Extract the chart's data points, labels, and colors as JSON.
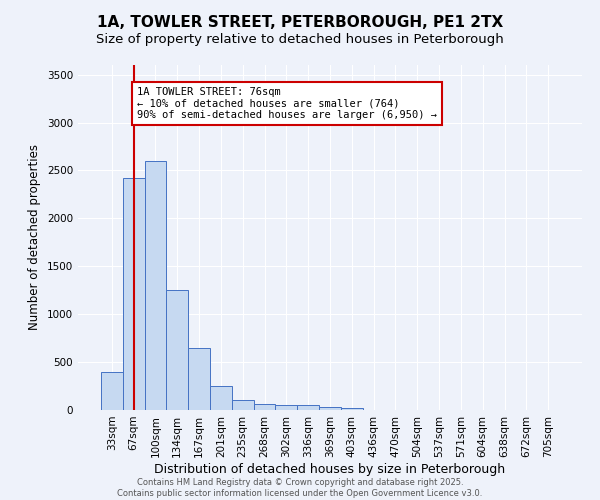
{
  "title_line1": "1A, TOWLER STREET, PETERBOROUGH, PE1 2TX",
  "title_line2": "Size of property relative to detached houses in Peterborough",
  "xlabel": "Distribution of detached houses by size in Peterborough",
  "ylabel": "Number of detached properties",
  "bin_labels": [
    "33sqm",
    "67sqm",
    "100sqm",
    "134sqm",
    "167sqm",
    "201sqm",
    "235sqm",
    "268sqm",
    "302sqm",
    "336sqm",
    "369sqm",
    "403sqm",
    "436sqm",
    "470sqm",
    "504sqm",
    "537sqm",
    "571sqm",
    "604sqm",
    "638sqm",
    "672sqm",
    "705sqm"
  ],
  "bar_heights": [
    400,
    2420,
    2600,
    1250,
    650,
    255,
    105,
    60,
    55,
    50,
    30,
    25,
    0,
    0,
    0,
    0,
    0,
    0,
    0,
    0,
    0
  ],
  "bar_color": "#c6d9f1",
  "bar_edge_color": "#4472c4",
  "red_line_x": 1.0,
  "red_line_label_line1": "1A TOWLER STREET: 76sqm",
  "red_line_label_line2": "← 10% of detached houses are smaller (764)",
  "red_line_label_line3": "90% of semi-detached houses are larger (6,950) →",
  "annotation_box_edge": "#cc0000",
  "ylim": [
    0,
    3600
  ],
  "background_color": "#eef2fa",
  "footer_line1": "Contains HM Land Registry data © Crown copyright and database right 2025.",
  "footer_line2": "Contains public sector information licensed under the Open Government Licence v3.0.",
  "title_fontsize": 11,
  "subtitle_fontsize": 9.5,
  "tick_fontsize": 7.5,
  "ylabel_fontsize": 8.5,
  "xlabel_fontsize": 9
}
